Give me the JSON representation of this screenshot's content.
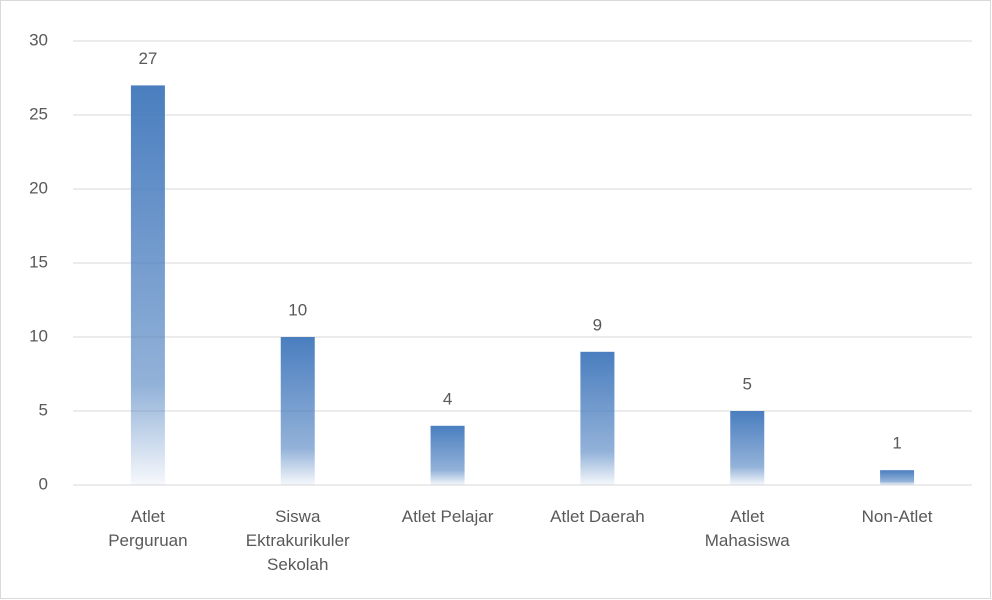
{
  "chart_data": {
    "type": "bar",
    "categories": [
      "Atlet Perguruan",
      "Siswa Ektrakurikuler Sekolah",
      "Atlet Pelajar",
      "Atlet Daerah",
      "Atlet Mahasiswa",
      "Non-Atlet"
    ],
    "values": [
      27,
      10,
      4,
      9,
      5,
      1
    ],
    "color": "#4a7ebf",
    "ylim": [
      0,
      30
    ],
    "yticks": [
      0,
      5,
      10,
      15,
      20,
      25,
      30
    ],
    "grid": true
  }
}
